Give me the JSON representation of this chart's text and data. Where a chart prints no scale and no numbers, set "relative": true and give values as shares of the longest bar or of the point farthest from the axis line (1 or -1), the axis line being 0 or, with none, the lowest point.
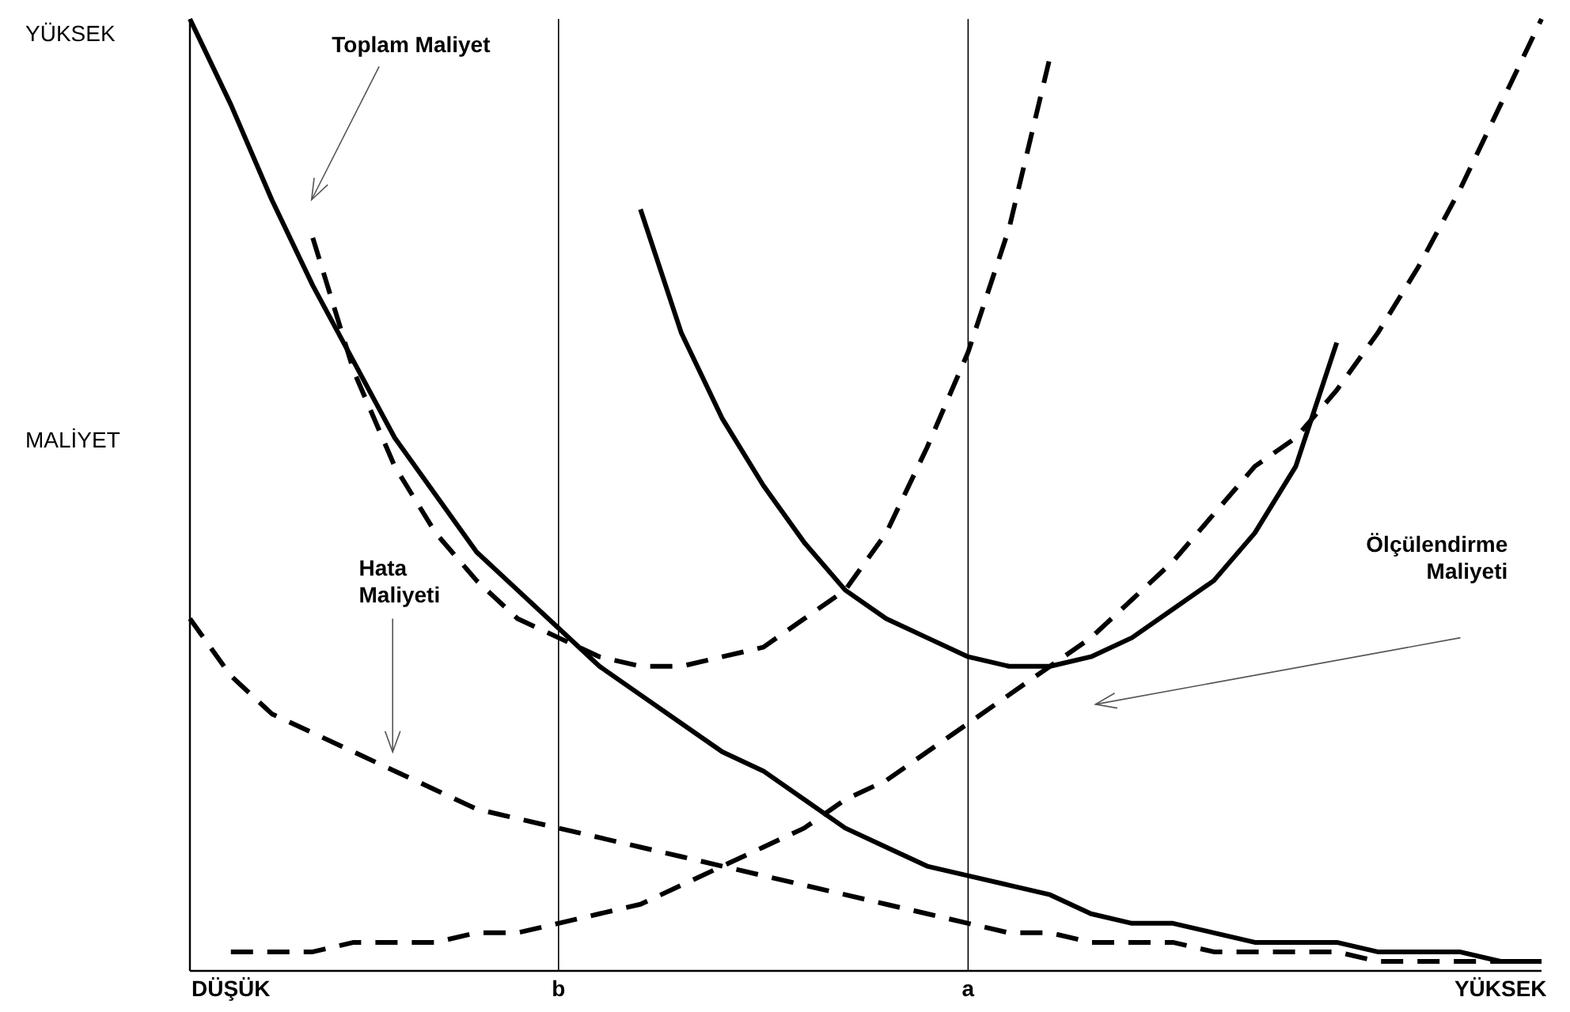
{
  "chart_data": {
    "type": "line",
    "relative": true,
    "ylabel": "MALİYET",
    "categories": [
      null,
      "DÜŞÜK",
      null,
      null,
      null,
      null,
      null,
      null,
      null,
      "b",
      null,
      null,
      null,
      null,
      null,
      null,
      null,
      null,
      null,
      "a",
      null,
      null,
      null,
      null,
      null,
      null,
      null,
      null,
      null,
      null,
      null,
      null,
      "YÜKSEK",
      null
    ],
    "series": [
      {
        "color": "#000000",
        "line_style": "solid",
        "values": [
          1.0,
          0.91,
          0.81,
          0.72,
          0.64,
          0.56,
          0.5,
          0.44,
          0.4,
          0.36,
          0.32,
          0.29,
          0.26,
          0.23,
          0.21,
          0.18,
          0.15,
          0.13,
          0.11,
          0.1,
          0.09,
          0.08,
          0.06,
          0.05,
          0.05,
          0.04,
          0.03,
          0.03,
          0.03,
          0.02,
          0.02,
          0.02,
          0.01,
          0.01
        ]
      },
      {
        "color": "#000000",
        "line_style": "dashed",
        "values": [
          0.37,
          0.31,
          0.27,
          0.25,
          0.23,
          0.21,
          0.19,
          0.17,
          0.16,
          0.15,
          0.14,
          0.13,
          0.12,
          0.11,
          0.1,
          0.09,
          0.08,
          0.07,
          0.06,
          0.05,
          0.04,
          0.04,
          0.03,
          0.03,
          0.03,
          0.02,
          0.02,
          0.02,
          0.02,
          0.01,
          0.01,
          0.01,
          0.01,
          0.01
        ]
      },
      {
        "color": "#000000",
        "line_style": "dashed",
        "values": [
          null,
          0.02,
          0.02,
          0.02,
          0.03,
          0.03,
          0.03,
          0.04,
          0.04,
          0.05,
          0.06,
          0.07,
          0.09,
          0.11,
          0.13,
          0.15,
          0.18,
          0.2,
          0.23,
          0.26,
          0.29,
          0.32,
          0.35,
          0.39,
          0.43,
          0.48,
          0.53,
          0.56,
          0.61,
          0.67,
          0.74,
          0.82,
          0.91,
          1.0
        ]
      },
      {
        "color": "#000000",
        "line_style": "dashed",
        "values": [
          null,
          null,
          null,
          0.77,
          0.63,
          0.53,
          0.46,
          0.41,
          0.37,
          0.35,
          0.33,
          0.32,
          0.32,
          0.33,
          0.34,
          0.37,
          0.4,
          0.46,
          0.55,
          0.65,
          0.78,
          0.96,
          null,
          null,
          null,
          null,
          null,
          null,
          null,
          null,
          null,
          null,
          null,
          null
        ]
      },
      {
        "color": "#000000",
        "line_style": "solid",
        "values": [
          null,
          null,
          null,
          null,
          null,
          null,
          null,
          null,
          null,
          null,
          null,
          0.8,
          0.67,
          0.58,
          0.51,
          0.45,
          0.4,
          0.37,
          0.35,
          0.33,
          0.32,
          0.32,
          0.33,
          0.35,
          0.38,
          0.41,
          0.46,
          0.53,
          0.66,
          null,
          null,
          null,
          null,
          null
        ]
      }
    ],
    "ref_lines": [
      {
        "axis": "x",
        "value": "b",
        "color": "#000000"
      },
      {
        "axis": "x",
        "value": "a",
        "color": "#000000"
      }
    ],
    "annotations": [
      "YÜKSEK",
      "Toplam Maliyet",
      "Hata Maliyeti",
      "Ölçülendirme Maliyeti"
    ]
  }
}
